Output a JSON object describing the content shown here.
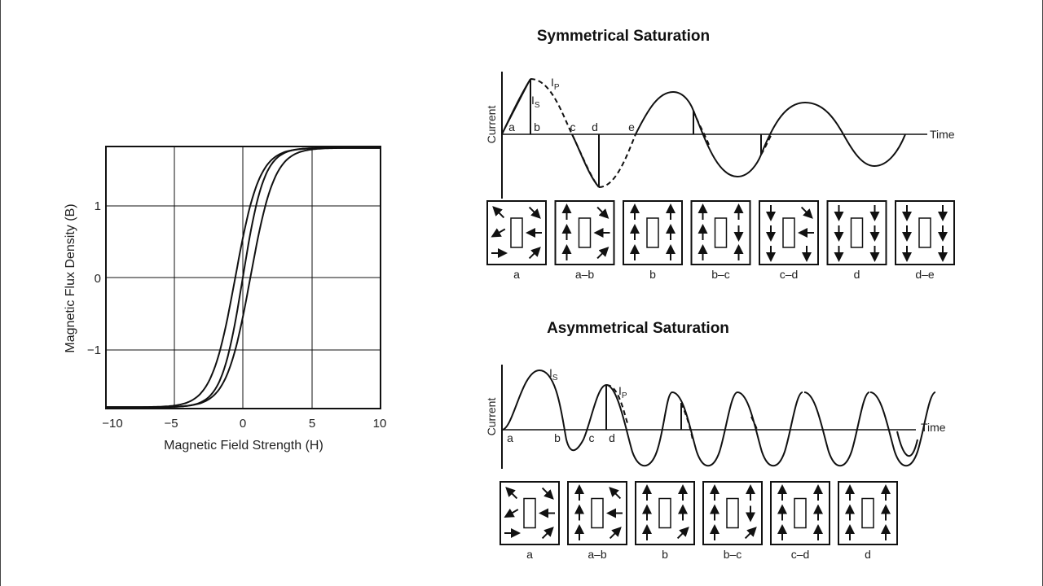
{
  "hysteresis": {
    "xlabel": "Magnetic Field Strength (H)",
    "ylabel": "Magnetic Flux Density (B)",
    "xticks": [
      "−10",
      "−5",
      "0",
      "5",
      "10"
    ],
    "yticks": [
      "1",
      "0",
      "−1"
    ]
  },
  "symmetric": {
    "title": "Symmetrical Saturation",
    "axis_y": "Current",
    "axis_x": "Time",
    "curve_labels": {
      "is": "I",
      "is_sub": "S",
      "ip": "I",
      "ip_sub": "P"
    },
    "points": [
      "a",
      "b",
      "c",
      "d",
      "e"
    ],
    "boxes": [
      "a",
      "a–b",
      "b",
      "b–c",
      "c–d",
      "d",
      "d–e"
    ]
  },
  "asymmetric": {
    "title": "Asymmetrical Saturation",
    "axis_y": "Current",
    "axis_x": "Time",
    "curve_labels": {
      "is": "I",
      "is_sub": "S",
      "ip": "I",
      "ip_sub": "P"
    },
    "points": [
      "a",
      "b",
      "c",
      "d"
    ],
    "boxes": [
      "a",
      "a–b",
      "b",
      "b–c",
      "c–d",
      "d"
    ]
  }
}
